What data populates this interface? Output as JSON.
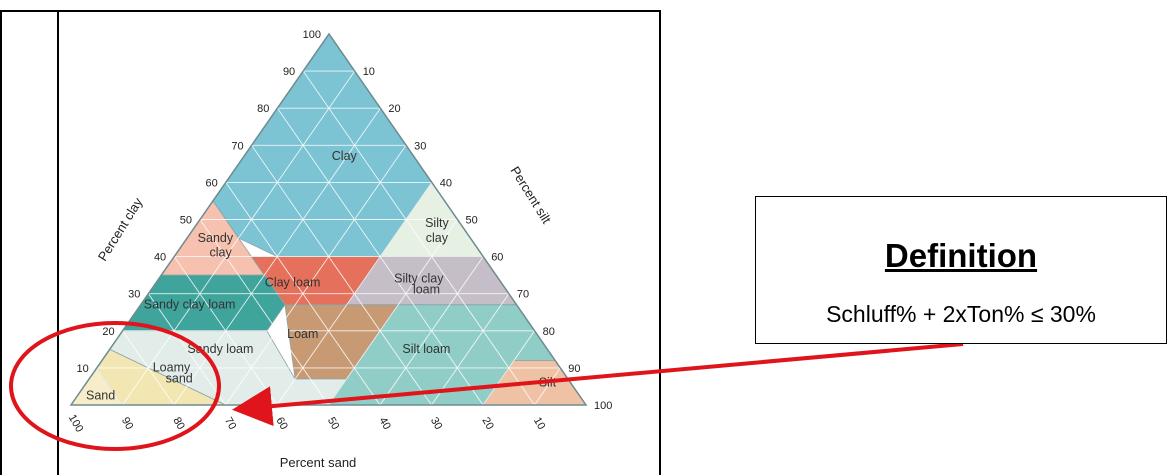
{
  "diagram": {
    "axis_labels": {
      "clay": "Percent clay",
      "silt": "Percent silt",
      "sand": "Percent sand"
    },
    "ticks": {
      "clay": [
        "10",
        "20",
        "30",
        "40",
        "50",
        "60",
        "70",
        "80",
        "90",
        "100"
      ],
      "silt": [
        "10",
        "20",
        "30",
        "40",
        "50",
        "60",
        "70",
        "80",
        "90",
        "100"
      ],
      "sand": [
        "100",
        "90",
        "80",
        "70",
        "60",
        "50",
        "40",
        "30",
        "20",
        "10"
      ]
    },
    "regions": [
      {
        "name": "clay",
        "label": [
          "Clay"
        ],
        "color": "#7cc3d3"
      },
      {
        "name": "silty-clay",
        "label": [
          "Silty",
          "clay"
        ],
        "color": "#e7f1e3"
      },
      {
        "name": "sandy-clay",
        "label": [
          "Sandy",
          "clay"
        ],
        "color": "#f6c1ae"
      },
      {
        "name": "clay-loam",
        "label": [
          "Clay loam"
        ],
        "color": "#e5705c"
      },
      {
        "name": "silty-clay-loam",
        "label": [
          "Silty clay",
          "loam"
        ],
        "color": "#c5bdc8"
      },
      {
        "name": "sandy-clay-loam",
        "label": [
          "Sandy clay loam"
        ],
        "color": "#3fa49c"
      },
      {
        "name": "loam",
        "label": [
          "Loam"
        ],
        "color": "#c89a74"
      },
      {
        "name": "sandy-loam",
        "label": [
          "Sandy loam"
        ],
        "color": "#e2ede9"
      },
      {
        "name": "silt-loam",
        "label": [
          "Silt loam"
        ],
        "color": "#8fcdc6"
      },
      {
        "name": "silt",
        "label": [
          "Silt"
        ],
        "color": "#efc2a6"
      },
      {
        "name": "loamy-sand",
        "label": [
          "Loamy",
          "sand"
        ],
        "color": "#f2e6b3"
      },
      {
        "name": "sand",
        "label": [
          "Sand"
        ],
        "color": "#f7eec9"
      }
    ]
  },
  "definition": {
    "title": "Definition",
    "formula": "Schluff% + 2xTon% ≤ 30%"
  },
  "highlight": {
    "color": "#e0141b"
  }
}
